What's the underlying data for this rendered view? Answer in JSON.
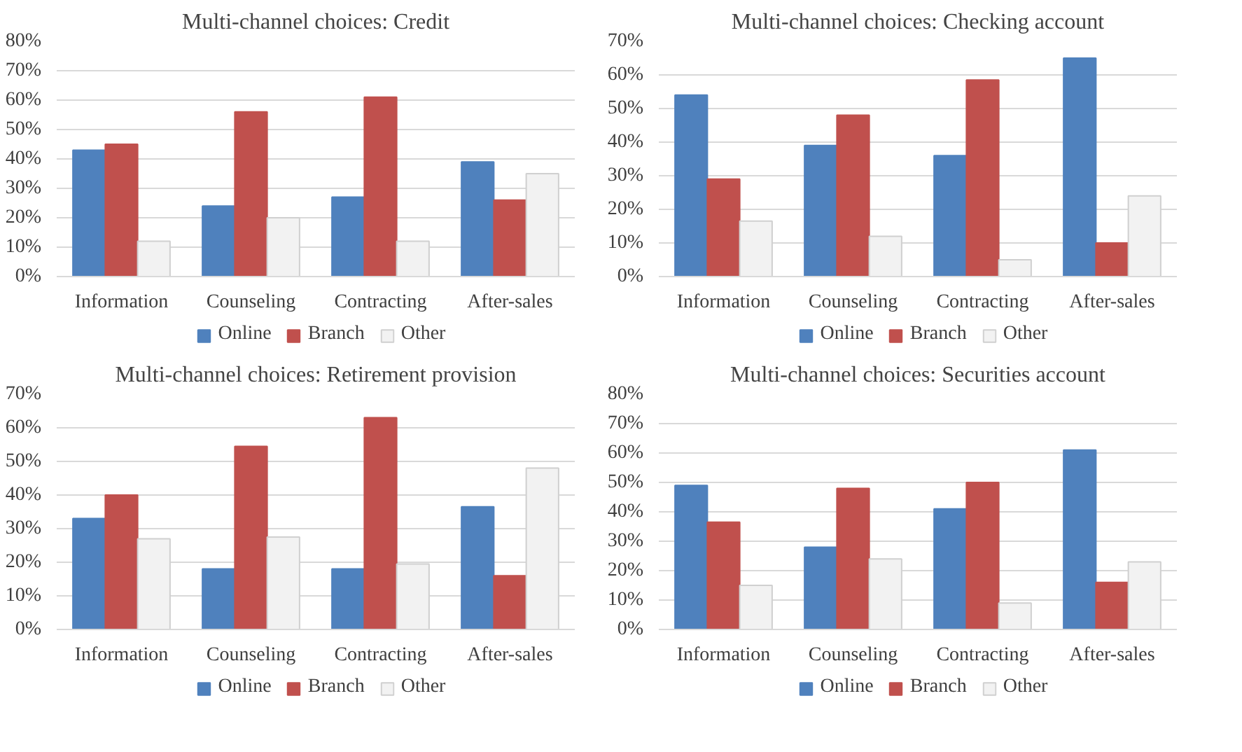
{
  "chart_data": [
    {
      "type": "bar",
      "title": "Multi-channel choices: Credit",
      "categories": [
        "Information",
        "Counseling",
        "Contracting",
        "After-sales"
      ],
      "series": [
        {
          "name": "Online",
          "color": "#4f81bd",
          "values": [
            43,
            24,
            27,
            39
          ]
        },
        {
          "name": "Branch",
          "color": "#c0504d",
          "values": [
            45,
            56,
            61,
            26
          ]
        },
        {
          "name": "Other",
          "color": "#f2f2f2",
          "values": [
            12,
            20,
            12,
            35
          ]
        }
      ],
      "ylim": [
        0,
        80
      ],
      "yticks": [
        {
          "value": 0,
          "label": "0%"
        },
        {
          "value": 10,
          "label": "10%"
        },
        {
          "value": 20,
          "label": "20%"
        },
        {
          "value": 30,
          "label": "30%"
        },
        {
          "value": 40,
          "label": "40%"
        },
        {
          "value": 50,
          "label": "50%"
        },
        {
          "value": 60,
          "label": "60%"
        },
        {
          "value": 70,
          "label": "70%"
        },
        {
          "value": 80,
          "label": "80%"
        }
      ],
      "grid": "y",
      "legend": "bottom"
    },
    {
      "type": "bar",
      "title": "Multi-channel choices: Checking account",
      "categories": [
        "Information",
        "Counseling",
        "Contracting",
        "After-sales"
      ],
      "series": [
        {
          "name": "Online",
          "color": "#4f81bd",
          "values": [
            54,
            39,
            36,
            65
          ]
        },
        {
          "name": "Branch",
          "color": "#c0504d",
          "values": [
            29,
            48,
            58.5,
            10
          ]
        },
        {
          "name": "Other",
          "color": "#f2f2f2",
          "values": [
            16.5,
            12,
            5,
            24
          ]
        }
      ],
      "ylim": [
        0,
        70
      ],
      "yticks": [
        {
          "value": 0,
          "label": "0%"
        },
        {
          "value": 10,
          "label": "10%"
        },
        {
          "value": 20,
          "label": "20%"
        },
        {
          "value": 30,
          "label": "30%"
        },
        {
          "value": 40,
          "label": "40%"
        },
        {
          "value": 50,
          "label": "50%"
        },
        {
          "value": 60,
          "label": "60%"
        },
        {
          "value": 70,
          "label": "70%"
        }
      ],
      "grid": "y",
      "legend": "bottom"
    },
    {
      "type": "bar",
      "title": "Multi-channel choices: Retirement provision",
      "categories": [
        "Information",
        "Counseling",
        "Contracting",
        "After-sales"
      ],
      "series": [
        {
          "name": "Online",
          "color": "#4f81bd",
          "values": [
            33,
            18,
            18,
            36.5
          ]
        },
        {
          "name": "Branch",
          "color": "#c0504d",
          "values": [
            40,
            54.5,
            63,
            16
          ]
        },
        {
          "name": "Other",
          "color": "#f2f2f2",
          "values": [
            27,
            27.5,
            19.5,
            48
          ]
        }
      ],
      "ylim": [
        0,
        70
      ],
      "yticks": [
        {
          "value": 0,
          "label": "0%"
        },
        {
          "value": 10,
          "label": "10%"
        },
        {
          "value": 20,
          "label": "20%"
        },
        {
          "value": 30,
          "label": "30%"
        },
        {
          "value": 40,
          "label": "40%"
        },
        {
          "value": 50,
          "label": "50%"
        },
        {
          "value": 60,
          "label": "60%"
        },
        {
          "value": 70,
          "label": "70%"
        }
      ],
      "grid": "y",
      "legend": "bottom"
    },
    {
      "type": "bar",
      "title": "Multi-channel choices: Securities account",
      "categories": [
        "Information",
        "Counseling",
        "Contracting",
        "After-sales"
      ],
      "series": [
        {
          "name": "Online",
          "color": "#4f81bd",
          "values": [
            49,
            28,
            41,
            61
          ]
        },
        {
          "name": "Branch",
          "color": "#c0504d",
          "values": [
            36.5,
            48,
            50,
            16
          ]
        },
        {
          "name": "Other",
          "color": "#f2f2f2",
          "values": [
            15,
            24,
            9,
            23
          ]
        }
      ],
      "ylim": [
        0,
        80
      ],
      "yticks": [
        {
          "value": 0,
          "label": "0%"
        },
        {
          "value": 10,
          "label": "10%"
        },
        {
          "value": 20,
          "label": "20%"
        },
        {
          "value": 30,
          "label": "30%"
        },
        {
          "value": 40,
          "label": "40%"
        },
        {
          "value": 50,
          "label": "50%"
        },
        {
          "value": 60,
          "label": "60%"
        },
        {
          "value": 70,
          "label": "70%"
        },
        {
          "value": 80,
          "label": "80%"
        }
      ],
      "grid": "y",
      "legend": "bottom"
    }
  ]
}
